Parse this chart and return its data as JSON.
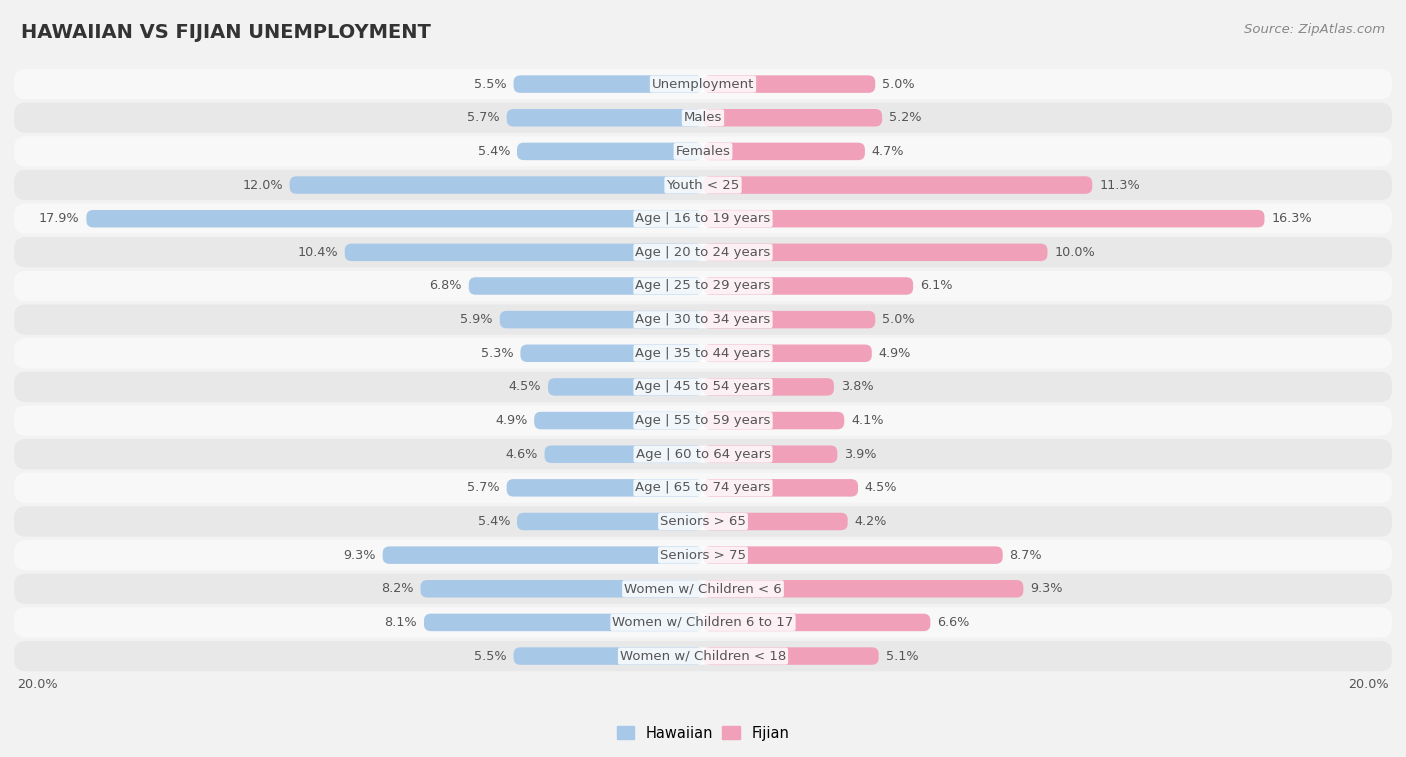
{
  "title": "HAWAIIAN VS FIJIAN UNEMPLOYMENT",
  "source": "Source: ZipAtlas.com",
  "categories": [
    "Unemployment",
    "Males",
    "Females",
    "Youth < 25",
    "Age | 16 to 19 years",
    "Age | 20 to 24 years",
    "Age | 25 to 29 years",
    "Age | 30 to 34 years",
    "Age | 35 to 44 years",
    "Age | 45 to 54 years",
    "Age | 55 to 59 years",
    "Age | 60 to 64 years",
    "Age | 65 to 74 years",
    "Seniors > 65",
    "Seniors > 75",
    "Women w/ Children < 6",
    "Women w/ Children 6 to 17",
    "Women w/ Children < 18"
  ],
  "hawaiian": [
    5.5,
    5.7,
    5.4,
    12.0,
    17.9,
    10.4,
    6.8,
    5.9,
    5.3,
    4.5,
    4.9,
    4.6,
    5.7,
    5.4,
    9.3,
    8.2,
    8.1,
    5.5
  ],
  "fijian": [
    5.0,
    5.2,
    4.7,
    11.3,
    16.3,
    10.0,
    6.1,
    5.0,
    4.9,
    3.8,
    4.1,
    3.9,
    4.5,
    4.2,
    8.7,
    9.3,
    6.6,
    5.1
  ],
  "hawaiian_color": "#a8c8e8",
  "fijian_color": "#f0a0b8",
  "bg_color": "#f2f2f2",
  "row_bg_odd": "#e8e8e8",
  "row_bg_even": "#f8f8f8",
  "max_value": 20.0,
  "bar_height": 0.52,
  "label_fontsize": 9.5,
  "value_fontsize": 9.2,
  "title_fontsize": 14,
  "source_fontsize": 9.5,
  "text_color": "#555555",
  "title_color": "#333333"
}
